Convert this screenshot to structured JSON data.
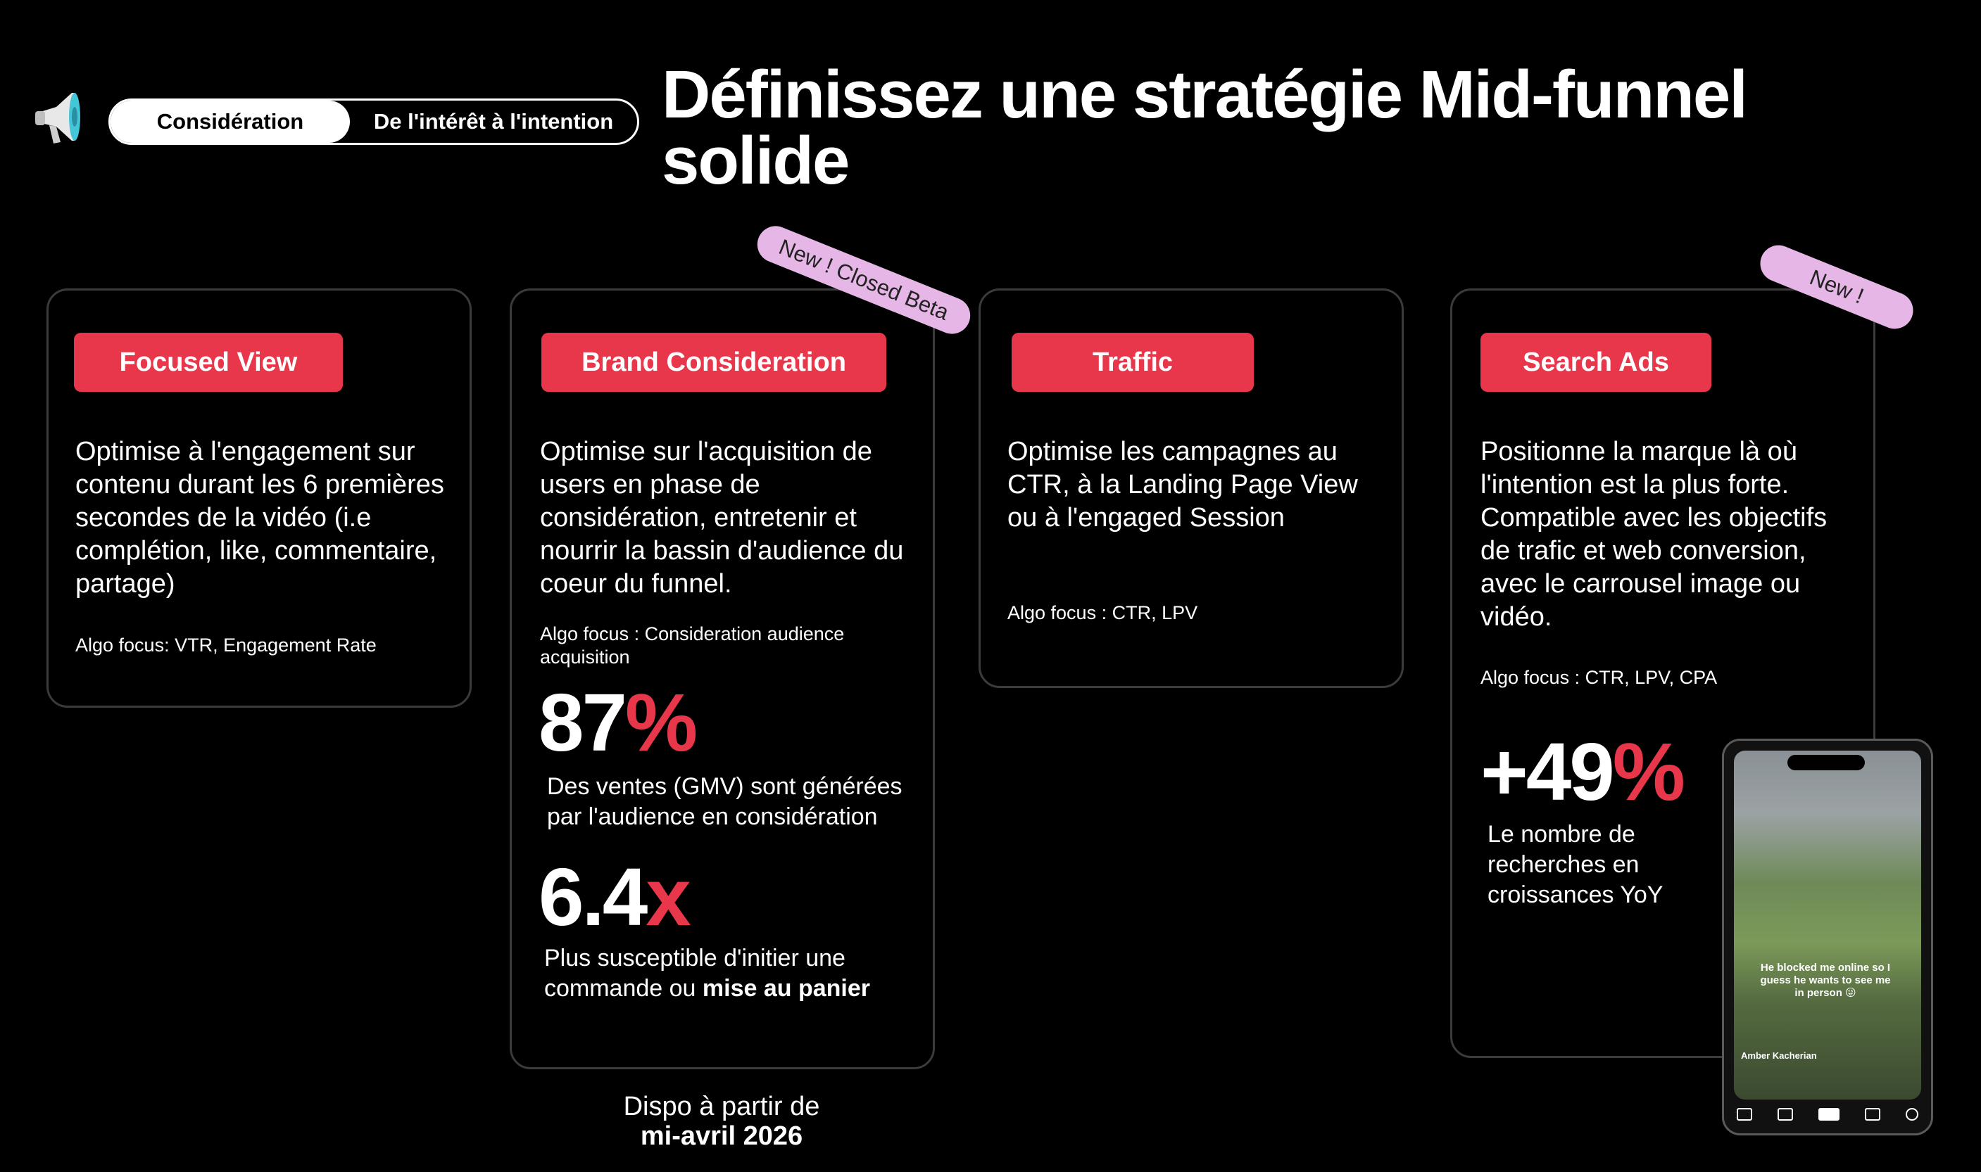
{
  "header": {
    "stage_active": "Considération",
    "stage_desc": "De l'intérêt à l'intention",
    "title": "Définissez une stratégie Mid-funnel solide",
    "megaphone_icon": "megaphone-icon"
  },
  "colors": {
    "accent": "#e8374a",
    "badge": "#e6b6e6",
    "background": "#000000"
  },
  "cards": [
    {
      "tag": "Focused View",
      "description": "Optimise à l'engagement sur contenu durant les 6 premières secondes de la vidéo (i.e complétion, like, commentaire, partage)",
      "algo": "Algo focus: VTR, Engagement Rate"
    },
    {
      "tag": "Brand Consideration",
      "badge": "New ! Closed Beta",
      "description": "Optimise sur l'acquisition de users en phase de considération, entretenir et nourrir la bassin d'audience du coeur du funnel.",
      "algo": "Algo focus : Consideration audience acquisition",
      "stat1_number": "87",
      "stat1_unit": "%",
      "stat1_text": "Des ventes (GMV) sont générées par l'audience en considération",
      "stat2_number": "6.4",
      "stat2_unit": "x",
      "stat2_text": "Plus susceptible d'initier une commande ou ",
      "stat2_bold": "mise au panier"
    },
    {
      "tag": "Traffic",
      "description": "Optimise les campagnes au CTR, à la Landing Page View ou à l'engaged Session",
      "algo": "Algo focus : CTR, LPV"
    },
    {
      "tag": "Search Ads",
      "badge": "New !",
      "description": "Positionne la marque là où l'intention est la plus forte. Compatible avec les objectifs de trafic et web conversion, avec le carrousel image ou vidéo.",
      "algo": "Algo focus : CTR, LPV, CPA",
      "stat_number": "+49",
      "stat_unit": "%",
      "stat_text": "Le nombre de recherches en croissances YoY"
    }
  ],
  "availability": {
    "line1": "Dispo à partir de",
    "line2": "mi-avril 2026"
  },
  "phone": {
    "caption": "He blocked me online so I guess he wants to see me in person 😜",
    "username": "Amber Kacherian"
  }
}
